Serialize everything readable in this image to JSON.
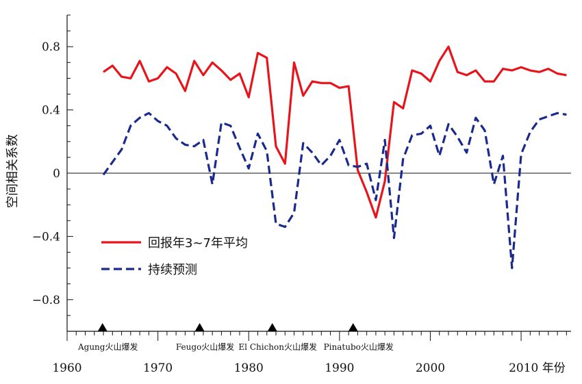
{
  "chart_data": {
    "type": "line",
    "ylabel": "空间相关系数",
    "xlim": [
      1960,
      2015.5
    ],
    "ylim": [
      -1.0,
      1.0
    ],
    "yticks": [
      {
        "value": 0.8,
        "label": "0.8"
      },
      {
        "value": 0.4,
        "label": "0.4"
      },
      {
        "value": 0,
        "label": "0"
      },
      {
        "value": -0.4,
        "label": "−0.4"
      },
      {
        "value": -0.8,
        "label": "−0.8"
      }
    ],
    "xticks": [
      {
        "value": 1960,
        "label": "1960"
      },
      {
        "value": 1970,
        "label": "1970"
      },
      {
        "value": 1980,
        "label": "1980"
      },
      {
        "value": 1990,
        "label": "1990"
      },
      {
        "value": 2000,
        "label": "2000"
      },
      {
        "value": 2010,
        "label": "2010 年份"
      }
    ],
    "zero_line": true,
    "legend_position": "lower-left",
    "series": [
      {
        "name": "回报年3~7年平均",
        "color": "#e8141b",
        "style": "solid",
        "x": [
          1964,
          1965,
          1966,
          1967,
          1968,
          1969,
          1970,
          1971,
          1972,
          1973,
          1974,
          1975,
          1976,
          1977,
          1978,
          1979,
          1980,
          1981,
          1982,
          1983,
          1984,
          1985,
          1986,
          1987,
          1988,
          1989,
          1990,
          1991,
          1992,
          1993,
          1994,
          1995,
          1996,
          1997,
          1998,
          1999,
          2000,
          2001,
          2002,
          2003,
          2004,
          2005,
          2006,
          2007,
          2008,
          2009,
          2010,
          2011,
          2012,
          2013,
          2014,
          2015
        ],
        "values": [
          0.64,
          0.68,
          0.61,
          0.6,
          0.71,
          0.58,
          0.6,
          0.67,
          0.63,
          0.52,
          0.71,
          0.62,
          0.7,
          0.65,
          0.59,
          0.63,
          0.48,
          0.76,
          0.73,
          0.17,
          0.06,
          0.7,
          0.49,
          0.58,
          0.57,
          0.57,
          0.54,
          0.55,
          0.02,
          -0.12,
          -0.28,
          -0.05,
          0.45,
          0.41,
          0.65,
          0.63,
          0.58,
          0.71,
          0.8,
          0.64,
          0.62,
          0.65,
          0.58,
          0.58,
          0.66,
          0.65,
          0.67,
          0.65,
          0.64,
          0.66,
          0.63,
          0.62
        ]
      },
      {
        "name": "持续预测",
        "color": "#1a2a8c",
        "style": "dashed",
        "x": [
          1964,
          1965,
          1966,
          1967,
          1968,
          1969,
          1970,
          1971,
          1972,
          1973,
          1974,
          1975,
          1976,
          1977,
          1978,
          1979,
          1980,
          1981,
          1982,
          1983,
          1984,
          1985,
          1986,
          1987,
          1988,
          1989,
          1990,
          1991,
          1992,
          1993,
          1994,
          1995,
          1996,
          1997,
          1998,
          1999,
          2000,
          2001,
          2002,
          2003,
          2004,
          2005,
          2006,
          2007,
          2008,
          2009,
          2010,
          2011,
          2012,
          2013,
          2014,
          2015
        ],
        "values": [
          -0.01,
          0.07,
          0.15,
          0.3,
          0.35,
          0.38,
          0.33,
          0.3,
          0.22,
          0.18,
          0.17,
          0.21,
          -0.07,
          0.32,
          0.3,
          0.16,
          0.03,
          0.25,
          0.14,
          -0.32,
          -0.34,
          -0.25,
          0.19,
          0.13,
          0.05,
          0.11,
          0.21,
          0.05,
          0.04,
          0.06,
          -0.17,
          0.21,
          -0.41,
          0.09,
          0.24,
          0.25,
          0.3,
          0.11,
          0.31,
          0.23,
          0.13,
          0.35,
          0.27,
          -0.07,
          0.11,
          -0.6,
          0.12,
          0.26,
          0.34,
          0.36,
          0.38,
          0.37
        ]
      }
    ],
    "volcanoes": [
      {
        "year": 1963.9,
        "label": "Agung火山爆发"
      },
      {
        "year": 1974.6,
        "label": "Feugo火山爆发"
      },
      {
        "year": 1982.6,
        "label": "El Chichon火山爆发"
      },
      {
        "year": 1991.5,
        "label": "Pinatubo火山爆发"
      }
    ]
  }
}
